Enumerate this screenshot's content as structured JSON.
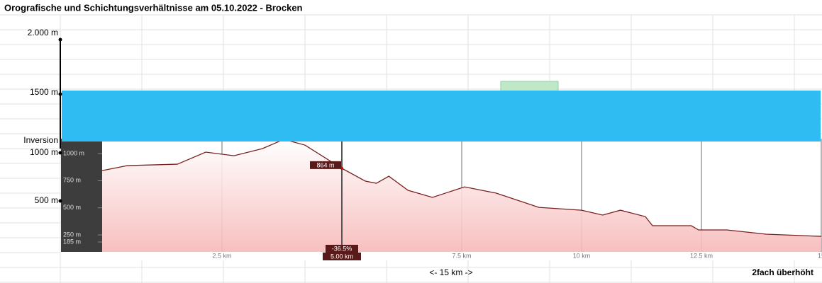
{
  "header": {
    "title": "Orografische und Schichtungsverhältnisse am 05.10.2022 - Brocken"
  },
  "outer_axis": {
    "labels": [
      "2.000 m",
      "1500 m",
      "Inversion",
      "1000 m",
      "500 m"
    ]
  },
  "footer": {
    "distance": "<- 15 km ->",
    "exaggeration": "2fach überhöht"
  },
  "chart_data": {
    "type": "area",
    "color": "#7a1f1f",
    "fill": "#f7b8b8",
    "x": [
      0,
      0.53,
      1.57,
      2.16,
      2.75,
      3.34,
      3.79,
      4.23,
      5.0,
      5.49,
      5.72,
      5.98,
      6.38,
      6.89,
      7.56,
      8.22,
      9.11,
      10.0,
      10.44,
      10.81,
      11.33,
      11.48,
      12.29,
      12.44,
      13.03,
      13.85,
      15.0
    ],
    "values": [
      843,
      889,
      902,
      1013,
      980,
      1045,
      1130,
      1078,
      864,
      746,
      726,
      791,
      661,
      596,
      693,
      635,
      504,
      478,
      433,
      478,
      419,
      335,
      335,
      296,
      296,
      257,
      237
    ],
    "xlim": [
      0,
      15
    ],
    "ylim": [
      94,
      1137
    ],
    "xticks": [
      {
        "value": 2.5,
        "label": "2.5 km"
      },
      {
        "value": 5,
        "label": "5.00 km"
      },
      {
        "value": 7.5,
        "label": "7.5 km"
      },
      {
        "value": 10,
        "label": "10 km"
      },
      {
        "value": 12.5,
        "label": "12.5 km"
      },
      {
        "value": 15,
        "label": "15"
      }
    ],
    "yticks": [
      {
        "value": 185,
        "label": "185 m"
      },
      {
        "value": 250,
        "label": "250 m"
      },
      {
        "value": 500,
        "label": "500 m"
      },
      {
        "value": 750,
        "label": "750 m"
      },
      {
        "value": 1000,
        "label": "1000 m"
      }
    ],
    "cursor": {
      "x": 5,
      "elevation": 864,
      "elevation_label": "864 m",
      "grade_label": "-36.5%"
    }
  }
}
